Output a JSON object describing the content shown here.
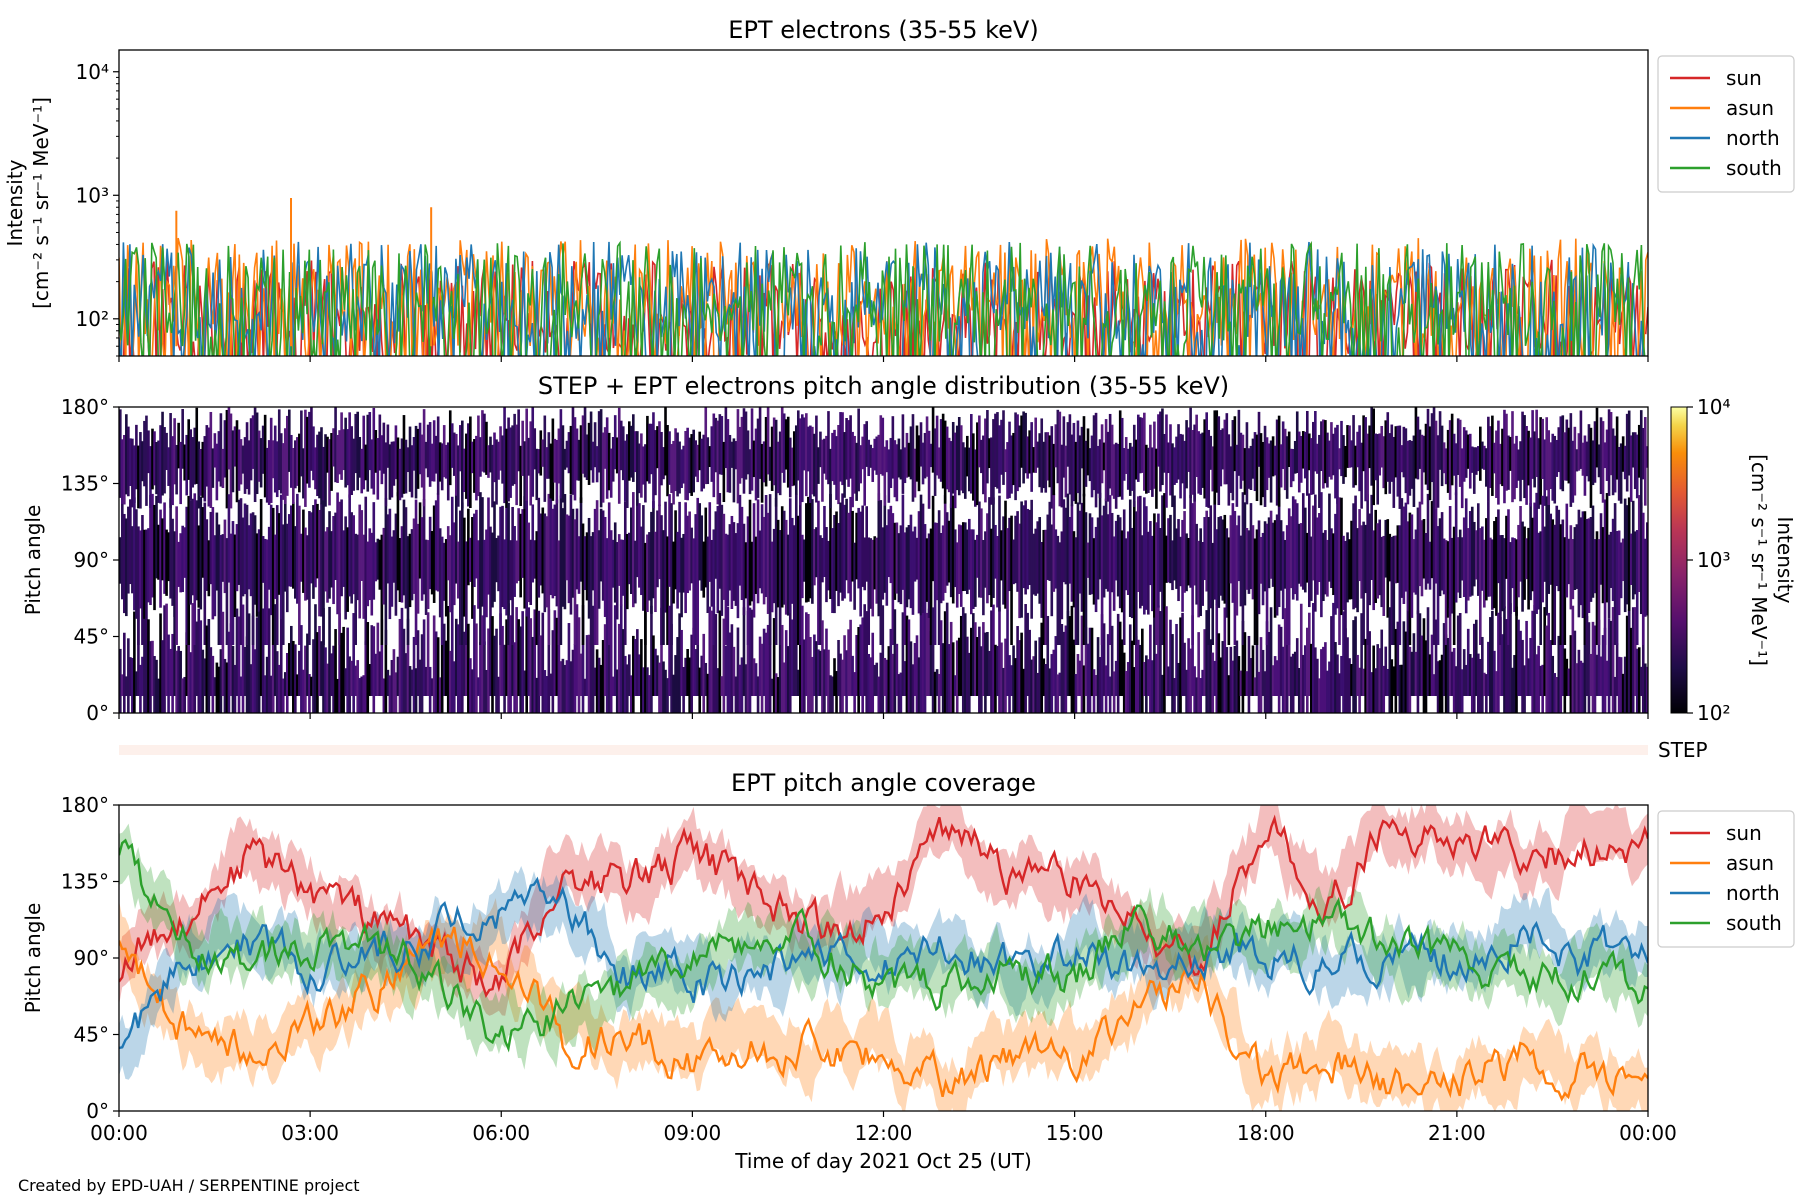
{
  "chart_data": [
    {
      "type": "line",
      "title": "EPT electrons (35-55 keV)",
      "ylabel_line1": "Intensity",
      "ylabel_line2": "[cm⁻² s⁻¹ sr⁻¹ MeV⁻¹]",
      "yscale": "log",
      "ylim": [
        50,
        15000
      ],
      "yticks": [
        {
          "value": 100,
          "label": "10²"
        },
        {
          "value": 1000,
          "label": "10³"
        },
        {
          "value": 10000,
          "label": "10⁴"
        }
      ],
      "xlim_hours": [
        0,
        24
      ],
      "legend_position": "upper right outside",
      "series": [
        {
          "name": "sun",
          "color": "#d62728",
          "typical_range": [
            50,
            300
          ]
        },
        {
          "name": "asun",
          "color": "#ff7f0e",
          "typical_range": [
            60,
            450
          ]
        },
        {
          "name": "north",
          "color": "#1f77b4",
          "typical_range": [
            60,
            420
          ]
        },
        {
          "name": "south",
          "color": "#2ca02c",
          "typical_range": [
            60,
            420
          ]
        }
      ],
      "annotations_peaks": [
        {
          "x_hours": 2.7,
          "value": 950
        },
        {
          "x_hours": 4.9,
          "value": 800
        },
        {
          "x_hours": 0.9,
          "value": 750
        }
      ]
    },
    {
      "type": "heatmap",
      "title": "STEP + EPT electrons pitch angle distribution (35-55 keV)",
      "ylabel": "Pitch angle",
      "ylim": [
        0,
        180
      ],
      "yticks": [
        "0°",
        "45°",
        "90°",
        "135°",
        "180°"
      ],
      "xlim_hours": [
        0,
        24
      ],
      "colorbar": {
        "label_line1": "Intensity",
        "label_line2": "[cm⁻² s⁻¹ sr⁻¹ MeV⁻¹]",
        "scale": "log",
        "range": [
          100,
          10000
        ],
        "ticks": [
          "10²",
          "10³",
          "10⁴"
        ],
        "colormap": "inferno"
      }
    },
    {
      "type": "heatmap",
      "title": "",
      "label": "STEP",
      "xlim_hours": [
        0,
        24
      ]
    },
    {
      "type": "line",
      "title": "EPT pitch angle coverage",
      "ylabel": "Pitch angle",
      "ylim": [
        0,
        180
      ],
      "yticks": [
        "0°",
        "45°",
        "90°",
        "135°",
        "180°"
      ],
      "xlabel": "Time of day 2021 Oct 25 (UT)",
      "xticks": [
        "00:00",
        "03:00",
        "06:00",
        "09:00",
        "12:00",
        "15:00",
        "18:00",
        "21:00",
        "00:00"
      ],
      "xlim_hours": [
        0,
        24
      ],
      "legend_position": "upper right outside",
      "x_hours": [
        0,
        1,
        2,
        3,
        4,
        5,
        6,
        7,
        8,
        9,
        10,
        11,
        12,
        13,
        14,
        15,
        16,
        17,
        18,
        19,
        20,
        21,
        22,
        23,
        24
      ],
      "series": [
        {
          "name": "sun",
          "color": "#d62728",
          "values": [
            85,
            115,
            150,
            130,
            110,
            95,
            70,
            140,
            135,
            150,
            130,
            105,
            120,
            165,
            140,
            135,
            110,
            90,
            170,
            120,
            168,
            165,
            150,
            155,
            155
          ]
        },
        {
          "name": "asun",
          "color": "#ff7f0e",
          "values": [
            100,
            50,
            35,
            50,
            70,
            100,
            95,
            40,
            40,
            30,
            35,
            40,
            35,
            15,
            35,
            35,
            60,
            80,
            15,
            35,
            15,
            15,
            30,
            20,
            25
          ]
        },
        {
          "name": "north",
          "color": "#1f77b4",
          "values": [
            30,
            90,
            95,
            85,
            90,
            105,
            120,
            115,
            80,
            75,
            80,
            90,
            90,
            95,
            85,
            95,
            85,
            95,
            90,
            90,
            90,
            90,
            105,
            90,
            100
          ]
        },
        {
          "name": "south",
          "color": "#2ca02c",
          "values": [
            155,
            100,
            90,
            95,
            95,
            80,
            45,
            60,
            75,
            85,
            100,
            95,
            75,
            75,
            80,
            80,
            110,
            95,
            105,
            115,
            95,
            90,
            80,
            85,
            75
          ]
        }
      ],
      "band_halfwidth_deg": 15
    }
  ],
  "footer": {
    "credit": "Created by EPD-UAH / SERPENTINE project"
  }
}
